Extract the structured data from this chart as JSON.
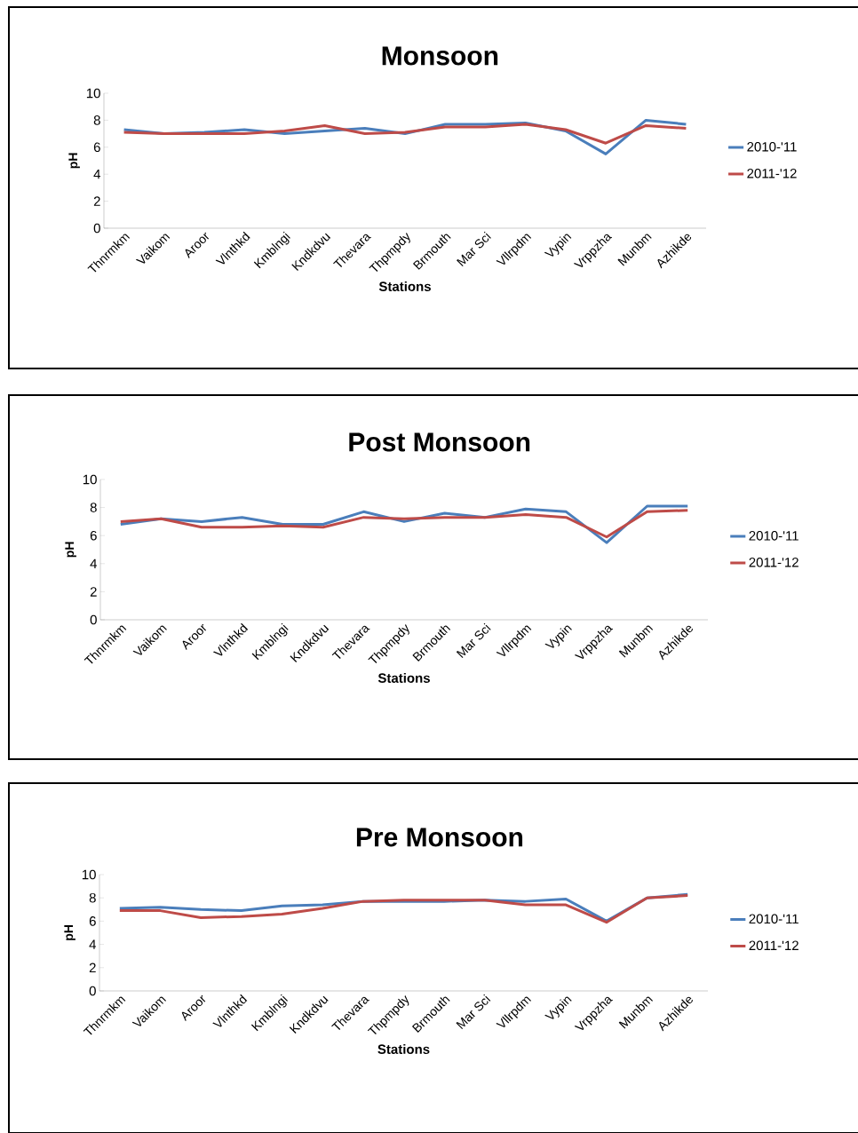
{
  "chart_data": [
    {
      "type": "line",
      "title": "Monsoon",
      "xlabel": "Stations",
      "ylabel": "pH",
      "categories": [
        "Thnrmkm",
        "Vaikom",
        "Aroor",
        "Vlnthkd",
        "Kmblngi",
        "Kndkdvu",
        "Thevara",
        "Thpmpdy",
        "Brmouth",
        "Mar Sci",
        "Vllrpdm",
        "Vypin",
        "Vrppzha",
        "Munbm",
        "Azhikde"
      ],
      "series": [
        {
          "name": "2010-'11",
          "color": "#4a7ebb",
          "values": [
            7.3,
            7.0,
            7.1,
            7.3,
            7.0,
            7.2,
            7.4,
            7.0,
            7.7,
            7.7,
            7.8,
            7.2,
            5.5,
            8.0,
            7.7
          ]
        },
        {
          "name": "2011-'12",
          "color": "#be4b48",
          "values": [
            7.1,
            7.0,
            7.0,
            7.0,
            7.2,
            7.6,
            7.0,
            7.1,
            7.5,
            7.5,
            7.7,
            7.3,
            6.3,
            7.6,
            7.4
          ]
        }
      ],
      "ylim": [
        0,
        10
      ],
      "yticks": [
        0,
        2,
        4,
        6,
        8,
        10
      ],
      "legend": "right",
      "grid": false,
      "marker": "none"
    },
    {
      "type": "line",
      "title": "Post Monsoon",
      "xlabel": "Stations",
      "ylabel": "pH",
      "categories": [
        "Thnrmkm",
        "Vaikom",
        "Aroor",
        "Vlnthkd",
        "Kmblngi",
        "Kndkdvu",
        "Thevara",
        "Thpmpdy",
        "Brmouth",
        "Mar Sci",
        "Vllrpdm",
        "Vypin",
        "Vrppzha",
        "Munbm",
        "Azhikde"
      ],
      "series": [
        {
          "name": "2010-'11",
          "color": "#4a7ebb",
          "values": [
            6.8,
            7.2,
            7.0,
            7.3,
            6.8,
            6.8,
            7.7,
            7.0,
            7.6,
            7.3,
            7.9,
            7.7,
            5.5,
            8.1,
            8.1
          ]
        },
        {
          "name": "2011-'12",
          "color": "#be4b48",
          "values": [
            7.0,
            7.2,
            6.6,
            6.6,
            6.7,
            6.6,
            7.3,
            7.2,
            7.3,
            7.3,
            7.5,
            7.3,
            5.9,
            7.7,
            7.8
          ]
        }
      ],
      "ylim": [
        0,
        10
      ],
      "yticks": [
        0,
        2,
        4,
        6,
        8,
        10
      ],
      "legend": "right",
      "grid": false,
      "marker": "none"
    },
    {
      "type": "line",
      "title": "Pre Monsoon",
      "xlabel": "Stations",
      "ylabel": "pH",
      "categories": [
        "Thnrmkm",
        "Vaikom",
        "Aroor",
        "Vlnthkd",
        "Kmblngi",
        "Kndkdvu",
        "Thevara",
        "Thpmpdy",
        "Brmouth",
        "Mar Sci",
        "Vllrpdm",
        "Vypin",
        "Vrppzha",
        "Munbm",
        "Azhikde"
      ],
      "series": [
        {
          "name": "2010-'11",
          "color": "#4a7ebb",
          "values": [
            7.1,
            7.2,
            7.0,
            6.9,
            7.3,
            7.4,
            7.7,
            7.7,
            7.7,
            7.8,
            7.7,
            7.9,
            6.0,
            8.0,
            8.3
          ]
        },
        {
          "name": "2011-'12",
          "color": "#be4b48",
          "values": [
            6.9,
            6.9,
            6.3,
            6.4,
            6.6,
            7.1,
            7.7,
            7.8,
            7.8,
            7.8,
            7.4,
            7.4,
            5.9,
            8.0,
            8.2
          ]
        }
      ],
      "ylim": [
        0,
        10
      ],
      "yticks": [
        0,
        2,
        4,
        6,
        8,
        10
      ],
      "legend": "right",
      "grid": false,
      "marker": "none"
    }
  ]
}
